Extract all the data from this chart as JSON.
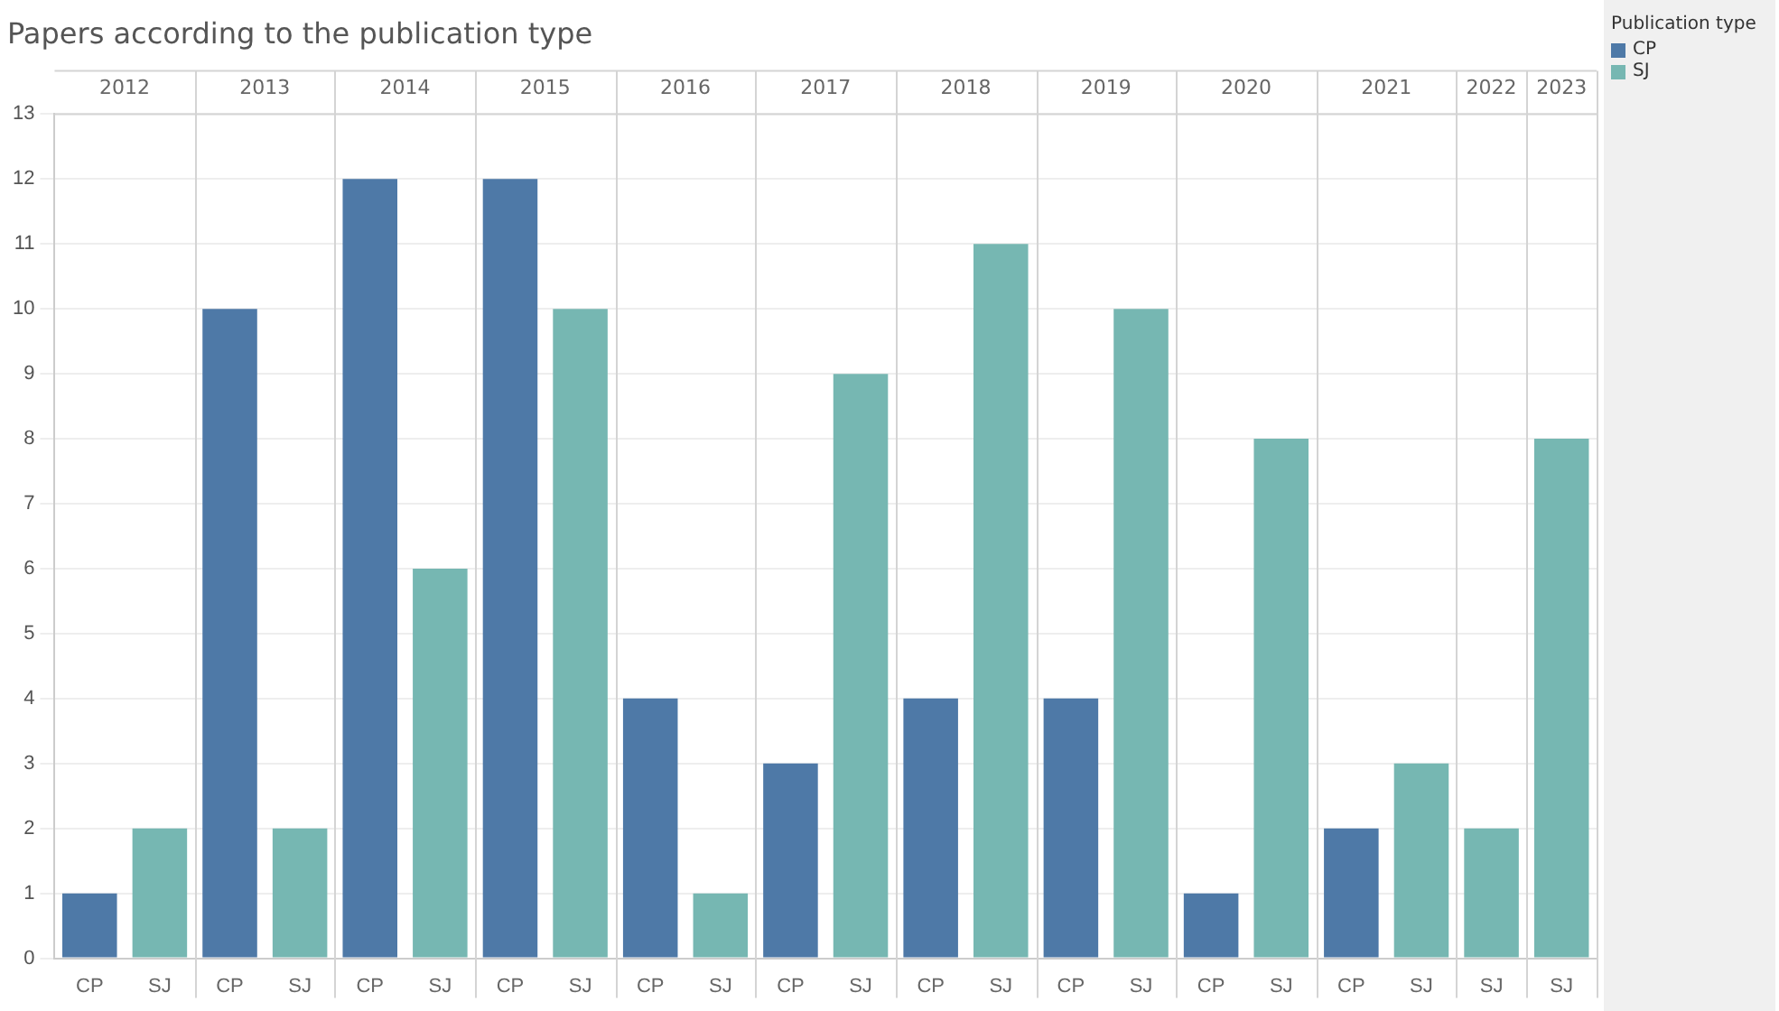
{
  "chart_data": {
    "type": "bar",
    "title": "Papers according to the publication type",
    "legend_title": "Publication type",
    "categories": [
      "2012",
      "2013",
      "2014",
      "2015",
      "2016",
      "2017",
      "2018",
      "2019",
      "2020",
      "2021",
      "2022",
      "2023"
    ],
    "series": [
      {
        "name": "CP",
        "color": "#4e79a7",
        "values": [
          1,
          10,
          12,
          12,
          4,
          3,
          4,
          4,
          1,
          2,
          null,
          null
        ]
      },
      {
        "name": "SJ",
        "color": "#76b7b2",
        "values": [
          2,
          2,
          6,
          10,
          1,
          9,
          11,
          10,
          8,
          3,
          2,
          8
        ]
      }
    ],
    "ylim": [
      0,
      13
    ],
    "yticks": [
      0,
      1,
      2,
      3,
      4,
      5,
      6,
      7,
      8,
      9,
      10,
      11,
      12,
      13
    ],
    "grid": "y",
    "legend": "top right"
  }
}
